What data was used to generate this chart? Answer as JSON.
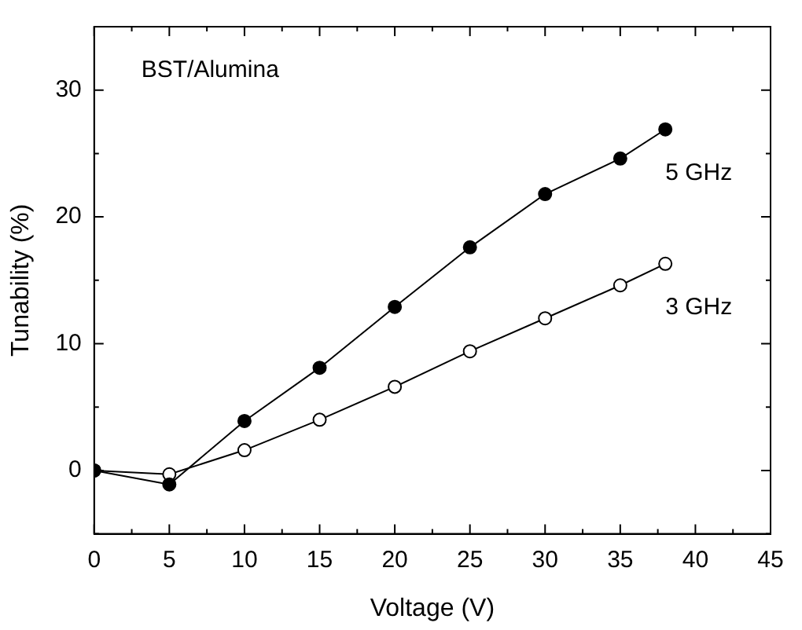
{
  "chart_data": {
    "type": "line",
    "xlabel": "Voltage (V)",
    "ylabel": "Tunability (%)",
    "annotations": [
      "BST/Alumina"
    ],
    "x": [
      0,
      5,
      10,
      15,
      20,
      25,
      30,
      35,
      38
    ],
    "series": [
      {
        "name": "5 GHz",
        "color": "#000000",
        "values": [
          0,
          -1.1,
          3.9,
          8.1,
          12.9,
          17.6,
          21.8,
          24.6,
          26.9
        ]
      },
      {
        "name": "3 GHz",
        "color": "#000000",
        "values": [
          0,
          -0.3,
          1.6,
          4.0,
          6.6,
          9.4,
          12.0,
          14.6,
          16.3
        ]
      }
    ],
    "xlim": [
      0,
      45
    ],
    "xticks": [
      0,
      {
        "value": 2.5,
        "label": null
      },
      5,
      {
        "value": 7.5,
        "label": null
      },
      10,
      {
        "value": 12.5,
        "label": null
      },
      15,
      {
        "value": 17.5,
        "label": null
      },
      20,
      {
        "value": 22.5,
        "label": null
      },
      25,
      {
        "value": 27.5,
        "label": null
      },
      30,
      {
        "value": 32.5,
        "label": null
      },
      35,
      {
        "value": 37.5,
        "label": null
      },
      40,
      {
        "value": 42.5,
        "label": null
      },
      45
    ],
    "ylim": [
      -5,
      35
    ],
    "yticks": [
      {
        "value": -5,
        "label": null
      },
      0,
      {
        "value": 5,
        "label": null
      },
      10,
      {
        "value": 15,
        "label": null
      },
      20,
      {
        "value": 25,
        "label": null
      },
      30,
      {
        "value": 35,
        "label": null
      }
    ],
    "grid": false,
    "legend": false,
    "marker": "circle",
    "line_style": "solid"
  }
}
